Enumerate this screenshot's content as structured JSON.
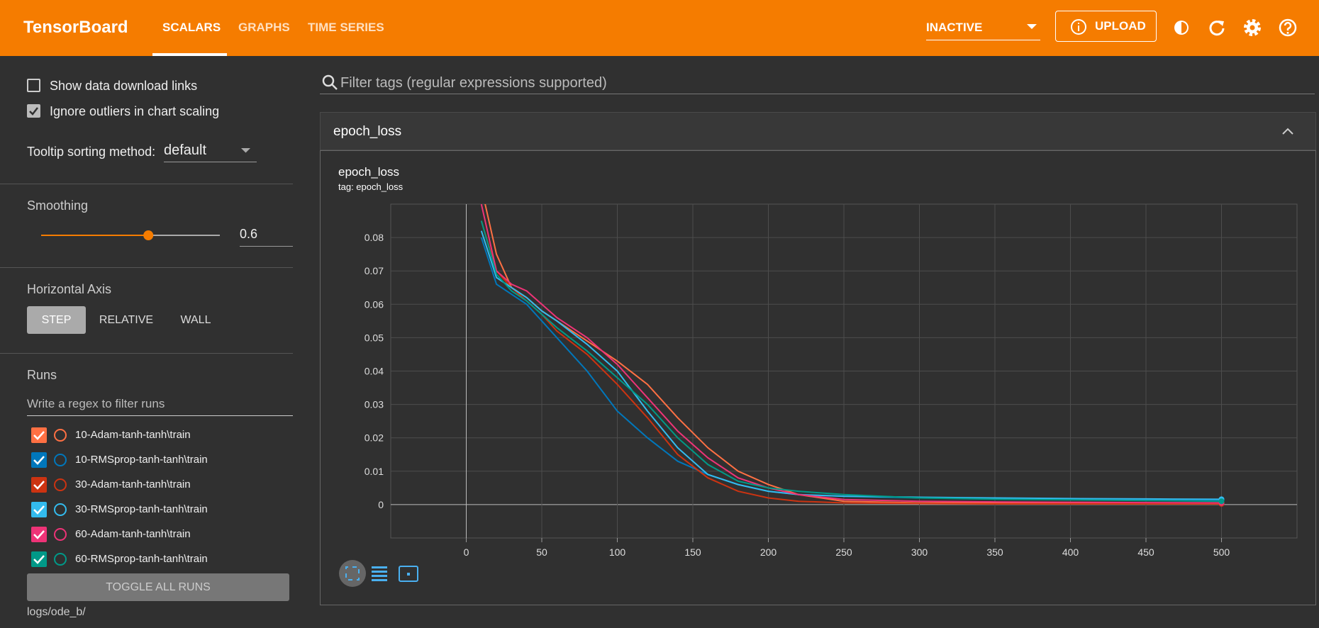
{
  "header": {
    "title": "TensorBoard",
    "tabs": [
      "SCALARS",
      "GRAPHS",
      "TIME SERIES"
    ],
    "status": "INACTIVE",
    "upload": "UPLOAD"
  },
  "sidebar": {
    "options": [
      {
        "label": "Show data download links",
        "checked": false
      },
      {
        "label": "Ignore outliers in chart scaling",
        "checked": true
      }
    ],
    "tooltip_label": "Tooltip sorting method:",
    "tooltip_value": "default",
    "smoothing_label": "Smoothing",
    "smoothing": 0.6,
    "axis_label": "Horizontal Axis",
    "axis_options": [
      "STEP",
      "RELATIVE",
      "WALL"
    ],
    "runs_label": "Runs",
    "runs_filter": "Write a regex to filter runs",
    "toggle": "TOGGLE ALL RUNS",
    "logdir": "logs/ode_b/"
  },
  "filter": "Filter tags (regular expressions supported)",
  "group": "epoch_loss",
  "chart_data": {
    "type": "line",
    "title": "epoch_loss",
    "subtitle": "tag: epoch_loss",
    "x": [
      10,
      20,
      30,
      40,
      50,
      60,
      80,
      100,
      120,
      140,
      160,
      180,
      200,
      220,
      250,
      300,
      350,
      400,
      450,
      500
    ],
    "series": [
      {
        "name": "10-Adam-tanh-tanh\\train",
        "color": "#ff7043",
        "values": [
          0.095,
          0.075,
          0.065,
          0.062,
          0.058,
          0.055,
          0.049,
          0.043,
          0.036,
          0.026,
          0.017,
          0.01,
          0.006,
          0.003,
          0.001,
          0.0005,
          0.0005,
          0.0004,
          0.0004,
          0.0003
        ]
      },
      {
        "name": "10-RMSprop-tanh-tanh\\train",
        "color": "#0077bb",
        "values": [
          0.08,
          0.066,
          0.063,
          0.06,
          0.055,
          0.05,
          0.04,
          0.028,
          0.02,
          0.013,
          0.009,
          0.006,
          0.004,
          0.003,
          0.0025,
          0.002,
          0.0018,
          0.0016,
          0.0015,
          0.0013
        ]
      },
      {
        "name": "30-Adam-tanh-tanh\\train",
        "color": "#cc3311",
        "values": [
          0.085,
          0.07,
          0.065,
          0.061,
          0.057,
          0.052,
          0.045,
          0.036,
          0.026,
          0.015,
          0.008,
          0.004,
          0.002,
          0.001,
          0.0005,
          0.0003,
          0.0002,
          0.0002,
          0.0002,
          0.0002
        ]
      },
      {
        "name": "30-RMSprop-tanh-tanh\\train",
        "color": "#33bbee",
        "values": [
          0.082,
          0.068,
          0.065,
          0.062,
          0.058,
          0.055,
          0.048,
          0.04,
          0.028,
          0.017,
          0.009,
          0.006,
          0.004,
          0.003,
          0.0025,
          0.0022,
          0.002,
          0.0018,
          0.0017,
          0.0016
        ]
      },
      {
        "name": "60-Adam-tanh-tanh\\train",
        "color": "#ee3377",
        "values": [
          0.09,
          0.07,
          0.066,
          0.064,
          0.06,
          0.056,
          0.05,
          0.042,
          0.032,
          0.022,
          0.014,
          0.008,
          0.005,
          0.003,
          0.0015,
          0.001,
          0.0008,
          0.0007,
          0.0006,
          0.0005
        ]
      },
      {
        "name": "60-RMSprop-tanh-tanh\\train",
        "color": "#009988",
        "values": [
          0.085,
          0.069,
          0.064,
          0.061,
          0.057,
          0.053,
          0.046,
          0.038,
          0.03,
          0.02,
          0.012,
          0.007,
          0.005,
          0.004,
          0.003,
          0.002,
          0.0016,
          0.0014,
          0.0012,
          0.001
        ]
      }
    ],
    "xlim": [
      -50,
      550
    ],
    "ylim": [
      -0.01,
      0.09
    ],
    "xticks": [
      0,
      50,
      100,
      150,
      200,
      250,
      300,
      350,
      400,
      450,
      500
    ],
    "yticks": [
      0,
      0.01,
      0.02,
      0.03,
      0.04,
      0.05,
      0.06,
      0.07,
      0.08
    ],
    "grid": true
  }
}
